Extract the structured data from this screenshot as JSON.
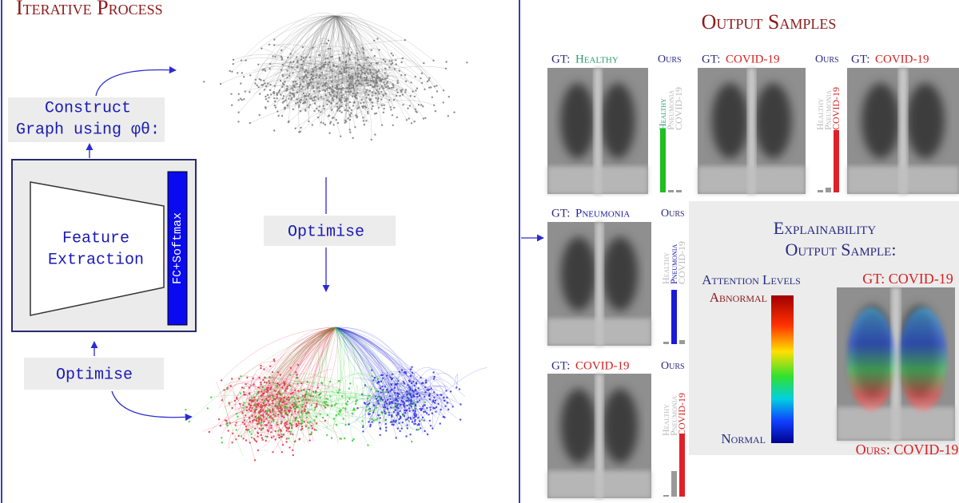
{
  "left_panel": {
    "title": "Iterative Process",
    "construct_label": [
      "Construct",
      "Graph using φθ:"
    ],
    "feature_block": {
      "label": [
        "Feature",
        "Extraction"
      ],
      "head": "FC+Softmax"
    },
    "optimise_labels": [
      "Optimise",
      "Optimise"
    ]
  },
  "output_panel": {
    "title": "Output Samples",
    "gt_prefix": "GT:",
    "ours_label": "Ours",
    "classes": [
      "Healthy",
      "Pneumonia",
      "COVID-19"
    ],
    "samples": [
      {
        "gt": "Healthy",
        "scores": [
          0.8,
          0.03,
          0.03
        ]
      },
      {
        "gt": "COVID-19",
        "scores": [
          0.03,
          0.06,
          0.78
        ]
      },
      {
        "gt": "COVID-19"
      },
      {
        "gt": "Pneumonia",
        "scores": [
          0.03,
          0.68,
          0.05
        ]
      },
      {
        "gt": "COVID-19",
        "scores": [
          0.02,
          0.32,
          0.79
        ]
      }
    ]
  },
  "explainability": {
    "title": [
      "Explainability",
      "Output Sample:"
    ],
    "legend_title": "Attention Levels",
    "high": "Abnormal",
    "low": "Normal",
    "gt": "GT: COVID-19",
    "prediction": "Ours: COVID-19"
  }
}
